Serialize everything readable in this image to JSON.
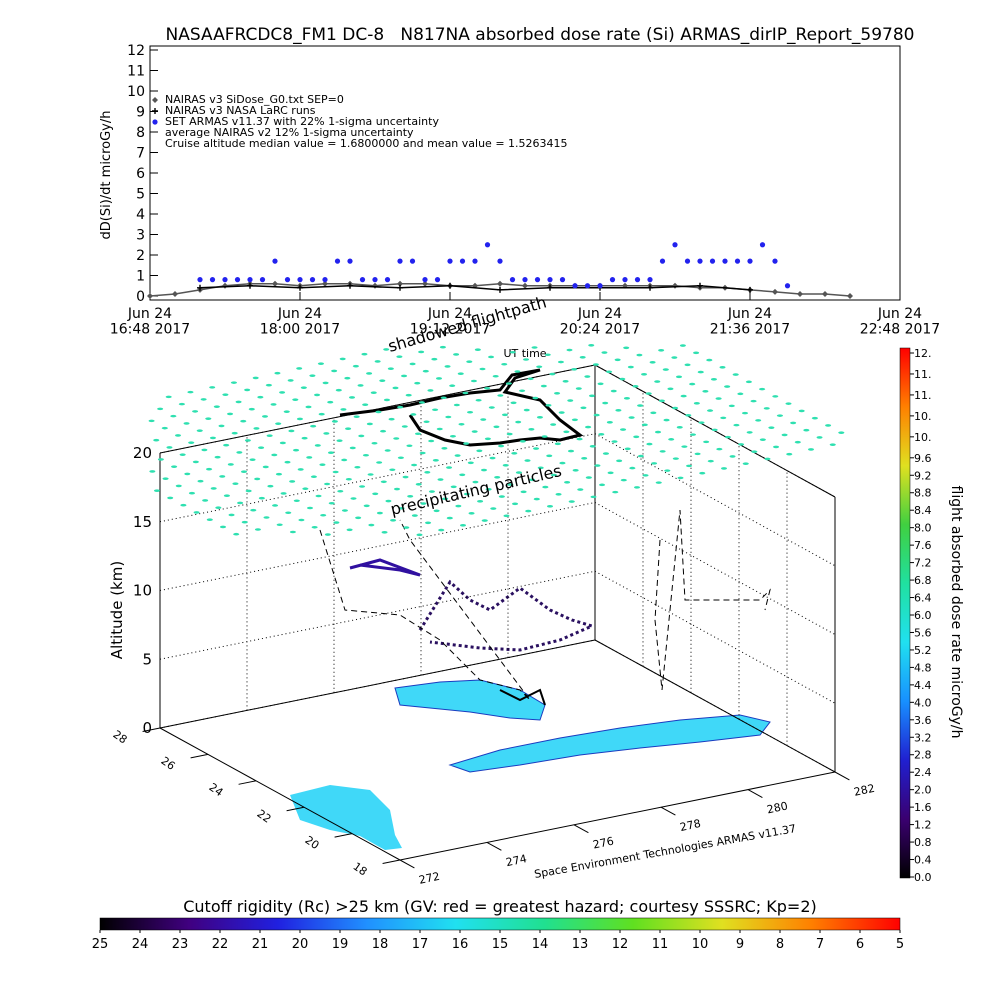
{
  "chart_data": [
    {
      "type": "line",
      "title": "NASAAFRCDC8_FM1 DC-8   N817NA absorbed dose rate (Si) ARMAS_dirIP_Report_59780",
      "ylabel": "dD(Si)/dt microGy/h",
      "xlabel": "UT time",
      "xlim": [
        16.8,
        22.8
      ],
      "xticks": [
        {
          "value": 16.8,
          "label": "Jun 24\n16:48 2017"
        },
        {
          "value": 18,
          "label": "Jun 24\n18:00 2017"
        },
        {
          "value": 19.2,
          "label": "Jun 24\n19:12 2017"
        },
        {
          "value": 20.4,
          "label": "Jun 24\n20:24 2017"
        },
        {
          "value": 21.6,
          "label": "Jun 24\n21:36 2017"
        },
        {
          "value": 22.8,
          "label": "Jun 24\n22:48 2017"
        }
      ],
      "ylim": [
        0,
        12
      ],
      "yticks": [
        0,
        1,
        2,
        3,
        4,
        5,
        6,
        7,
        8,
        9,
        10,
        11,
        12
      ],
      "series": [
        {
          "name": "NAIRAS v3 SiDose_G0.txt SEP=0",
          "color": "#555555",
          "marker": "diamond",
          "x": [
            16.8,
            17,
            17.2,
            17.4,
            17.6,
            17.8,
            18,
            18.2,
            18.4,
            18.6,
            18.8,
            19,
            19.2,
            19.4,
            19.6,
            19.8,
            20,
            20.2,
            20.4,
            20.6,
            20.8,
            21,
            21.2,
            21.4,
            21.6,
            21.8,
            22,
            22.2,
            22.4
          ],
          "values": [
            0,
            0.1,
            0.3,
            0.5,
            0.6,
            0.6,
            0.5,
            0.6,
            0.6,
            0.5,
            0.6,
            0.6,
            0.5,
            0.5,
            0.6,
            0.5,
            0.5,
            0.5,
            0.5,
            0.5,
            0.5,
            0.5,
            0.4,
            0.4,
            0.3,
            0.2,
            0.1,
            0.1,
            0
          ]
        },
        {
          "name": "NAIRAS v3 NASA LaRC runs",
          "color": "#000000",
          "marker": "plus",
          "x": [
            17.2,
            17.6,
            18,
            18.4,
            18.8,
            19.2,
            19.6,
            20,
            20.4,
            20.8,
            21.2,
            21.6
          ],
          "values": [
            0.4,
            0.5,
            0.4,
            0.5,
            0.4,
            0.5,
            0.3,
            0.4,
            0.4,
            0.4,
            0.5,
            0.3
          ]
        },
        {
          "name": "SET ARMAS v11.37 with 22% 1-sigma uncertainty",
          "color": "#2222ee",
          "marker": "circle",
          "x": [
            17.2,
            17.3,
            17.4,
            17.5,
            17.6,
            17.7,
            17.8,
            17.9,
            18,
            18.1,
            18.2,
            18.3,
            18.4,
            18.5,
            18.6,
            18.7,
            18.8,
            18.9,
            19,
            19.1,
            19.2,
            19.3,
            19.4,
            19.5,
            19.6,
            19.7,
            19.8,
            19.9,
            20,
            20.1,
            20.2,
            20.3,
            20.4,
            20.5,
            20.6,
            20.7,
            20.8,
            20.9,
            21,
            21.1,
            21.2,
            21.3,
            21.4,
            21.5,
            21.6,
            21.7,
            21.8,
            21.9
          ],
          "values": [
            0.8,
            0.8,
            0.8,
            0.8,
            0.8,
            0.8,
            1.7,
            0.8,
            0.8,
            0.8,
            0.8,
            1.7,
            1.7,
            0.8,
            0.8,
            0.8,
            1.7,
            1.7,
            0.8,
            0.8,
            1.7,
            1.7,
            1.7,
            2.5,
            1.7,
            0.8,
            0.8,
            0.8,
            0.8,
            0.8,
            0.5,
            0.5,
            0.5,
            0.8,
            0.8,
            0.8,
            0.8,
            1.7,
            2.5,
            1.7,
            1.7,
            1.7,
            1.7,
            1.7,
            1.7,
            2.5,
            1.7,
            0.5
          ]
        }
      ],
      "annotations": [
        "average NAIRAS v2 12% 1-sigma uncertainty",
        "Cruise altitude median value = 1.6800000 and mean value = 1.5263415"
      ]
    },
    {
      "type": "surface3d",
      "zlabel": "Altitude (km)",
      "zlim": [
        0,
        20
      ],
      "zticks": [
        0,
        5,
        10,
        15,
        20
      ],
      "xlim": [
        272,
        282
      ],
      "xticks": [
        272,
        274,
        276,
        278,
        280,
        282
      ],
      "ylim": [
        18,
        28
      ],
      "yticks": [
        28,
        26,
        24,
        22,
        20,
        18
      ],
      "color": "#2ee0b0",
      "annotations": [
        "shadowed flightpath",
        "precipitating particles",
        "Space Environment Technologies ARMAS v11.37"
      ]
    },
    {
      "type": "colorbar",
      "orientation": "vertical",
      "label": "flight absorbed dose rate microGy/h",
      "lim": [
        0,
        12
      ],
      "colors": [
        "#000000",
        "#3a0070",
        "#2020d0",
        "#1890ff",
        "#20e0f0",
        "#20e0a0",
        "#40d040",
        "#e0e020",
        "#ff8000",
        "#ff0000"
      ],
      "ticks": [
        {
          "value": 0,
          "label": "0.0"
        },
        {
          "value": 0.4,
          "label": "0.4"
        },
        {
          "value": 0.8,
          "label": "0.8"
        },
        {
          "value": 1.2,
          "label": "1.2"
        },
        {
          "value": 1.6,
          "label": "1.6"
        },
        {
          "value": 2.0,
          "label": "2.0"
        },
        {
          "value": 2.4,
          "label": "2.4"
        },
        {
          "value": 2.8,
          "label": "2.8"
        },
        {
          "value": 3.2,
          "label": "3.2"
        },
        {
          "value": 3.6,
          "label": "3.6"
        },
        {
          "value": 4.0,
          "label": "4.0"
        },
        {
          "value": 4.4,
          "label": "4.4"
        },
        {
          "value": 4.8,
          "label": "4.8"
        },
        {
          "value": 5.2,
          "label": "5.2"
        },
        {
          "value": 5.6,
          "label": "5.6"
        },
        {
          "value": 6.0,
          "label": "6.0"
        },
        {
          "value": 6.4,
          "label": "6.4"
        },
        {
          "value": 6.8,
          "label": "6.8"
        },
        {
          "value": 7.2,
          "label": "7.2"
        },
        {
          "value": 7.6,
          "label": "7.6"
        },
        {
          "value": 8.0,
          "label": "8.0"
        },
        {
          "value": 8.4,
          "label": "8.4"
        },
        {
          "value": 8.8,
          "label": "8.8"
        },
        {
          "value": 9.2,
          "label": "9.2"
        },
        {
          "value": 9.6,
          "label": "9.6"
        },
        {
          "value": 10.08,
          "label": "10."
        },
        {
          "value": 10.56,
          "label": "10."
        },
        {
          "value": 11.04,
          "label": "11."
        },
        {
          "value": 11.52,
          "label": "11."
        },
        {
          "value": 12.0,
          "label": "12."
        }
      ]
    },
    {
      "type": "colorbar",
      "orientation": "horizontal",
      "label": "Cutoff rigidity (Rc) >25 km (GV: red = greatest hazard; courtesy SSSRC; Kp=2)",
      "lim": [
        25,
        5
      ],
      "colors": [
        "#000000",
        "#400080",
        "#2020e0",
        "#2090ff",
        "#20e0f0",
        "#20e090",
        "#60e020",
        "#e0e020",
        "#ff8000",
        "#ff0000"
      ],
      "ticks": [
        25,
        24,
        23,
        22,
        21,
        20,
        19,
        18,
        17,
        16,
        15,
        14,
        13,
        12,
        11,
        10,
        9,
        8,
        7,
        6,
        5
      ]
    }
  ]
}
